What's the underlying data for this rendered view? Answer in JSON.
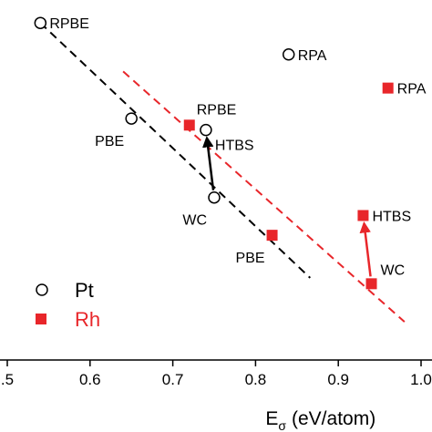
{
  "chart_data": {
    "type": "scatter",
    "xlabel": "E",
    "xlabel_sub": "σ",
    "xlabel_unit": "(eV/atom)",
    "xlim": [
      0.5,
      1.0
    ],
    "xticks": [
      {
        "value": 0.5,
        "label": ".5"
      },
      {
        "value": 0.6,
        "label": "0.6"
      },
      {
        "value": 0.7,
        "label": "0.7"
      },
      {
        "value": 0.8,
        "label": "0.8"
      },
      {
        "value": 0.9,
        "label": "0.9"
      },
      {
        "value": 1.0,
        "label": "1.0"
      }
    ],
    "ylim": [
      0,
      10
    ],
    "grid": false,
    "legend_position": "bottom-left",
    "series": [
      {
        "name": "Pt",
        "marker": "open-circle",
        "color": "#000000",
        "points": [
          {
            "x": 0.54,
            "y": 9.6,
            "label": "RPBE",
            "label_side": "right"
          },
          {
            "x": 0.65,
            "y": 6.84,
            "label": "PBE",
            "label_side": "below-left"
          },
          {
            "x": 0.74,
            "y": 6.51,
            "label": "HTBS",
            "label_side": "below-right"
          },
          {
            "x": 0.75,
            "y": 4.56,
            "label": "WC",
            "label_side": "below-left"
          },
          {
            "x": 0.84,
            "y": 8.69,
            "label": "RPA",
            "label_side": "right"
          }
        ],
        "trend": {
          "x": [
            0.54,
            0.866
          ],
          "y": [
            9.6,
            2.24
          ],
          "style": "dashed"
        },
        "arrow": {
          "from_x": 0.75,
          "from_y": 4.56,
          "to_x": 0.74,
          "to_y": 6.51
        }
      },
      {
        "name": "Rh",
        "marker": "filled-square",
        "color": "#e8262a",
        "points": [
          {
            "x": 0.72,
            "y": 6.65,
            "label": "RPBE",
            "label_side": "above"
          },
          {
            "x": 0.82,
            "y": 3.47,
            "label": "PBE",
            "label_side": "below-left"
          },
          {
            "x": 0.93,
            "y": 4.04,
            "label": "HTBS",
            "label_side": "right"
          },
          {
            "x": 0.94,
            "y": 2.07,
            "label": "WC",
            "label_side": "above-right"
          },
          {
            "x": 0.96,
            "y": 7.72,
            "label": "RPA",
            "label_side": "right"
          }
        ],
        "trend": {
          "x": [
            0.64,
            0.98
          ],
          "y": [
            8.2,
            0.97
          ],
          "style": "dashed"
        },
        "arrow": {
          "from_x": 0.94,
          "from_y": 2.07,
          "to_x": 0.93,
          "to_y": 4.04
        }
      }
    ]
  }
}
